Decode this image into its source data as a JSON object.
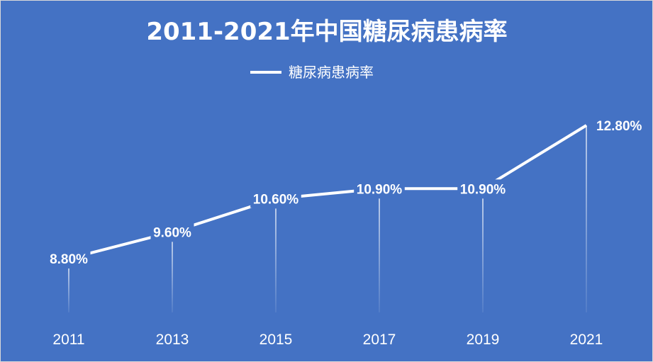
{
  "chart_data": {
    "type": "line",
    "title": "2011-2021年中国糖尿病患病率",
    "x": [
      "2011",
      "2013",
      "2015",
      "2017",
      "2019",
      "2021"
    ],
    "series": [
      {
        "name": "糖尿病患病率",
        "values": [
          8.8,
          9.6,
          10.6,
          10.9,
          10.9,
          12.8
        ],
        "labels": [
          "8.80%",
          "9.60%",
          "10.60%",
          "10.90%",
          "10.90%",
          "12.80%"
        ]
      }
    ],
    "ylim": [
      0,
      14
    ],
    "grid": false,
    "drop_lines": true,
    "legend": "top-center",
    "colors": {
      "background": "#4472c4",
      "line": "#ffffff",
      "drop_line": "#ffffff"
    }
  }
}
